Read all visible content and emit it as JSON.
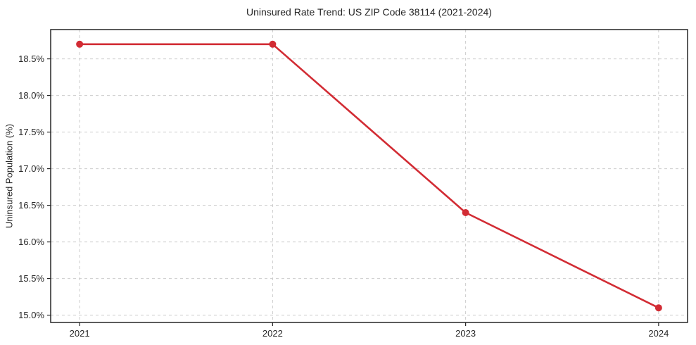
{
  "chart_data": {
    "type": "line",
    "title": "Uninsured Rate Trend: US ZIP Code 38114 (2021-2024)",
    "xlabel": "",
    "ylabel": "Uninsured Population (%)",
    "x": [
      2021,
      2022,
      2023,
      2024
    ],
    "x_tick_labels": [
      "2021",
      "2022",
      "2023",
      "2024"
    ],
    "series": [
      {
        "name": "Uninsured Population (%)",
        "values": [
          18.7,
          18.7,
          16.4,
          15.1
        ]
      }
    ],
    "y_ticks": [
      15.0,
      15.5,
      16.0,
      16.5,
      17.0,
      17.5,
      18.0,
      18.5
    ],
    "y_tick_labels": [
      "15.0%",
      "15.5%",
      "16.0%",
      "16.5%",
      "17.0%",
      "17.5%",
      "18.0%",
      "18.5%"
    ],
    "xlim": [
      2020.85,
      2024.15
    ],
    "ylim": [
      14.9,
      18.9
    ],
    "grid": true,
    "grid_style": "dashed",
    "legend": "none",
    "marker": "circle",
    "colors": {
      "line": "#d22c34",
      "grid": "#cccccc",
      "axis": "#262626",
      "text": "#262626",
      "background": "#ffffff"
    }
  }
}
